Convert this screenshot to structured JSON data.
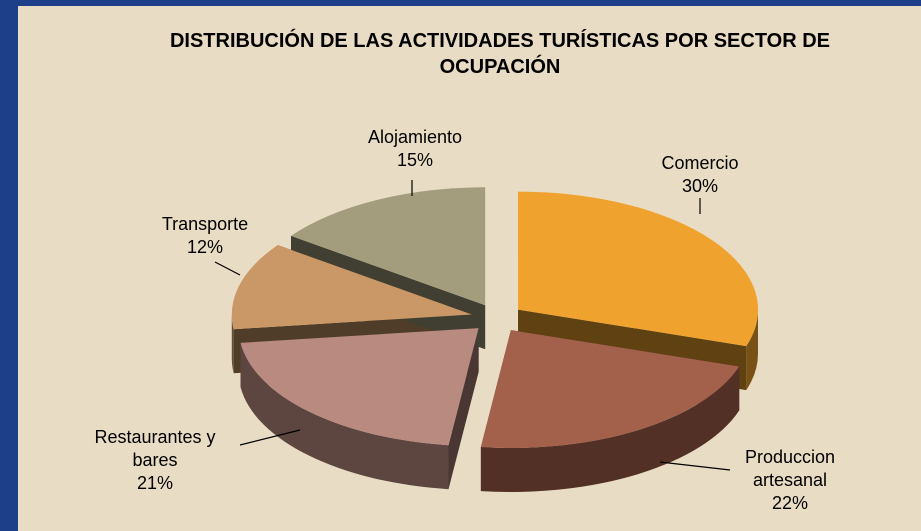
{
  "chart_data": {
    "type": "pie",
    "title": "DISTRIBUCIÓN DE LAS ACTIVIDADES TURÍSTICAS POR SECTOR DE OCUPACIÓN",
    "categories": [
      "Comercio",
      "Produccion artesanal",
      "Restaurantes y bares",
      "Transporte",
      "Alojamiento"
    ],
    "values": [
      30,
      22,
      21,
      12,
      15
    ],
    "value_labels": [
      "30%",
      "22%",
      "21%",
      "12%",
      "15%"
    ],
    "colors": [
      "#f0a22e",
      "#a3604b",
      "#b98a80",
      "#c99866",
      "#a39d7d"
    ]
  }
}
